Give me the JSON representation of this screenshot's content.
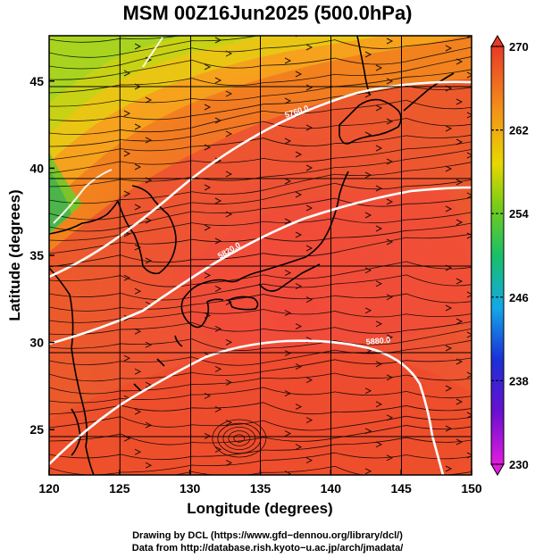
{
  "title": "MSM 00Z16Jun2025 (500.0hPa)",
  "axes": {
    "xlabel": "Longitude (degrees)",
    "ylabel": "Latitude  (degrees)",
    "xlim": [
      120,
      150
    ],
    "ylim": [
      22.4,
      47.6
    ],
    "xticks": [
      120,
      125,
      130,
      135,
      140,
      145,
      150
    ],
    "yticks": [
      25,
      30,
      35,
      40,
      45
    ]
  },
  "colorbar": {
    "min": 230,
    "max": 270,
    "labels": [
      270,
      262,
      254,
      246,
      238,
      230
    ]
  },
  "contours": [
    {
      "label": "5880.0",
      "color": "#ffffff"
    },
    {
      "label": "5820.0",
      "color": "#ffffff"
    },
    {
      "label": "5760.0",
      "color": "#ffffff"
    }
  ],
  "footer": {
    "line1": "Drawing by DCL (https://www.gfd−dennou.org/library/dcl/)",
    "line2": "Data from http://database.rish.kyoto−u.ac.jp/arch/jmadata/"
  }
}
